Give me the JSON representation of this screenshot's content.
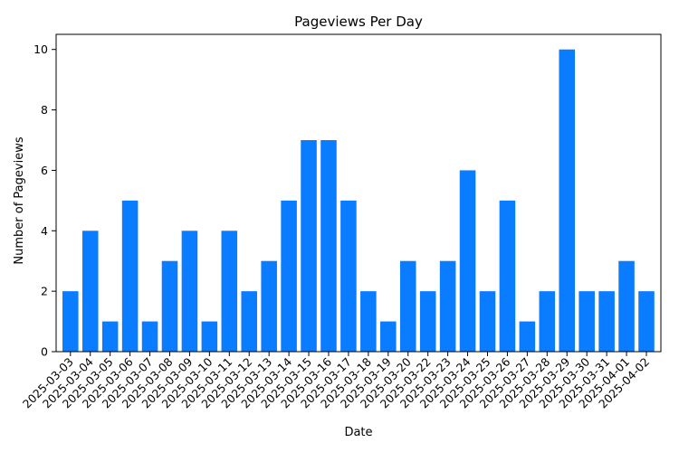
{
  "chart_data": {
    "type": "bar",
    "title": "Pageviews Per Day",
    "xlabel": "Date",
    "ylabel": "Number of Pageviews",
    "ylim": [
      0,
      10.5
    ],
    "yticks": [
      0,
      2,
      4,
      6,
      8,
      10
    ],
    "grid": false,
    "bar_color": "#0a7cff",
    "categories": [
      "2025-03-03",
      "2025-03-04",
      "2025-03-05",
      "2025-03-06",
      "2025-03-07",
      "2025-03-08",
      "2025-03-09",
      "2025-03-10",
      "2025-03-11",
      "2025-03-12",
      "2025-03-13",
      "2025-03-14",
      "2025-03-15",
      "2025-03-16",
      "2025-03-17",
      "2025-03-18",
      "2025-03-19",
      "2025-03-20",
      "2025-03-22",
      "2025-03-23",
      "2025-03-24",
      "2025-03-25",
      "2025-03-26",
      "2025-03-27",
      "2025-03-28",
      "2025-03-29",
      "2025-03-30",
      "2025-03-31",
      "2025-04-01",
      "2025-04-02"
    ],
    "values": [
      2,
      4,
      1,
      5,
      1,
      3,
      4,
      1,
      4,
      2,
      3,
      5,
      7,
      7,
      5,
      2,
      1,
      3,
      2,
      3,
      6,
      2,
      5,
      1,
      2,
      10,
      2,
      2,
      3,
      2
    ]
  }
}
